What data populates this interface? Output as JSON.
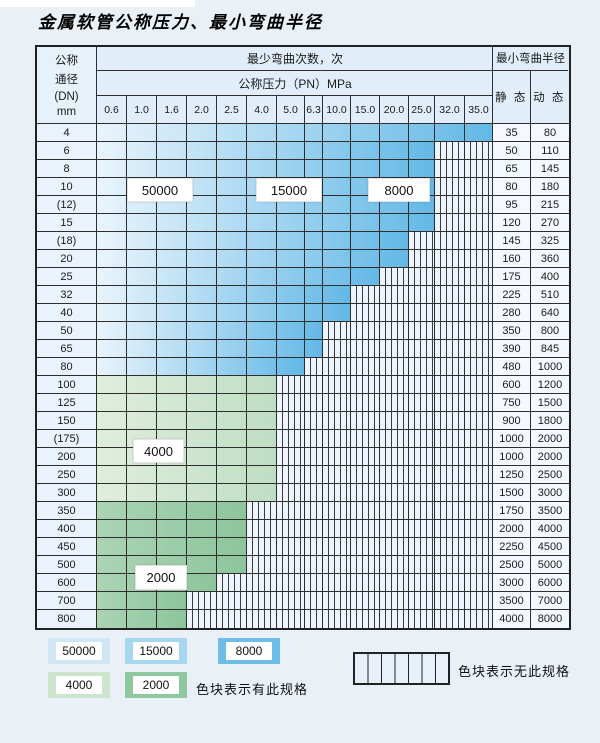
{
  "title": "金属软管公称压力、最小弯曲半径",
  "colors": {
    "grid_line": "#2e2e2e",
    "blue_zone": [
      "#e9f4fc",
      "#63b8e6"
    ],
    "green_light_zone": [
      "#e0eedd",
      "#bedec3"
    ],
    "green_dark_zone": [
      "#abd4b4",
      "#8cc59c"
    ],
    "hatch_bg": "#eef4fb"
  },
  "table": {
    "header": {
      "dn_lines": [
        "公称",
        "通径",
        "(DN)",
        "mm"
      ],
      "bend_cycles": "最少弯曲次数，次",
      "pressure": "公称压力（PN）MPa",
      "min_bend_radius": "最小弯曲半径",
      "static": "静 态",
      "dynamic": "动 态",
      "pressures": [
        "0.6",
        "1.0",
        "1.6",
        "2.0",
        "2.5",
        "4.0",
        "5.0",
        "6.3",
        "10.0",
        "15.0",
        "20.0",
        "25.0",
        "32.0",
        "35.0"
      ]
    },
    "zone_labels": [
      "50000",
      "15000",
      "8000",
      "4000",
      "2000"
    ],
    "rows": [
      {
        "dn": "4",
        "span": 14,
        "zone": "blue_zone",
        "static": "35",
        "dynamic": "80"
      },
      {
        "dn": "6",
        "span": 12,
        "zone": "blue_zone",
        "static": "50",
        "dynamic": "110"
      },
      {
        "dn": "8",
        "span": 12,
        "zone": "blue_zone",
        "static": "65",
        "dynamic": "145"
      },
      {
        "dn": "10",
        "span": 12,
        "zone": "blue_zone",
        "static": "80",
        "dynamic": "180"
      },
      {
        "dn": "(12)",
        "span": 12,
        "zone": "blue_zone",
        "static": "95",
        "dynamic": "215"
      },
      {
        "dn": "15",
        "span": 12,
        "zone": "blue_zone",
        "static": "120",
        "dynamic": "270"
      },
      {
        "dn": "(18)",
        "span": 11,
        "zone": "blue_zone",
        "static": "145",
        "dynamic": "325"
      },
      {
        "dn": "20",
        "span": 11,
        "zone": "blue_zone",
        "static": "160",
        "dynamic": "360"
      },
      {
        "dn": "25",
        "span": 10,
        "zone": "blue_zone",
        "static": "175",
        "dynamic": "400"
      },
      {
        "dn": "32",
        "span": 9,
        "zone": "blue_zone",
        "static": "225",
        "dynamic": "510"
      },
      {
        "dn": "40",
        "span": 9,
        "zone": "blue_zone",
        "static": "280",
        "dynamic": "640"
      },
      {
        "dn": "50",
        "span": 8,
        "zone": "blue_zone",
        "static": "350",
        "dynamic": "800"
      },
      {
        "dn": "65",
        "span": 8,
        "zone": "blue_zone",
        "static": "390",
        "dynamic": "845"
      },
      {
        "dn": "80",
        "span": 7,
        "zone": "blue_zone",
        "static": "480",
        "dynamic": "1000"
      },
      {
        "dn": "100",
        "span": 6,
        "zone": "green_light_zone",
        "static": "600",
        "dynamic": "1200"
      },
      {
        "dn": "125",
        "span": 6,
        "zone": "green_light_zone",
        "static": "750",
        "dynamic": "1500"
      },
      {
        "dn": "150",
        "span": 6,
        "zone": "green_light_zone",
        "static": "900",
        "dynamic": "1800"
      },
      {
        "dn": "(175)",
        "span": 6,
        "zone": "green_light_zone",
        "static": "1000",
        "dynamic": "2000"
      },
      {
        "dn": "200",
        "span": 6,
        "zone": "green_light_zone",
        "static": "1000",
        "dynamic": "2000"
      },
      {
        "dn": "250",
        "span": 6,
        "zone": "green_light_zone",
        "static": "1250",
        "dynamic": "2500"
      },
      {
        "dn": "300",
        "span": 6,
        "zone": "green_light_zone",
        "static": "1500",
        "dynamic": "3000"
      },
      {
        "dn": "350",
        "span": 5,
        "zone": "green_dark_zone",
        "static": "1750",
        "dynamic": "3500"
      },
      {
        "dn": "400",
        "span": 5,
        "zone": "green_dark_zone",
        "static": "2000",
        "dynamic": "4000"
      },
      {
        "dn": "450",
        "span": 5,
        "zone": "green_dark_zone",
        "static": "2250",
        "dynamic": "4500"
      },
      {
        "dn": "500",
        "span": 5,
        "zone": "green_dark_zone",
        "static": "2500",
        "dynamic": "5000"
      },
      {
        "dn": "600",
        "span": 4,
        "zone": "green_dark_zone",
        "static": "3000",
        "dynamic": "6000"
      },
      {
        "dn": "700",
        "span": 3,
        "zone": "green_dark_zone",
        "static": "3500",
        "dynamic": "7000"
      },
      {
        "dn": "800",
        "span": 3,
        "zone": "green_dark_zone",
        "static": "4000",
        "dynamic": "8000"
      }
    ]
  },
  "legend": {
    "has_spec_note": "色块表示有此规格",
    "no_spec_note": "色块表示无此规格",
    "swatches": [
      {
        "value": "50000",
        "color": "#cfe6f5"
      },
      {
        "value": "15000",
        "color": "#a6d7ef"
      },
      {
        "value": "8000",
        "color": "#6dbde6"
      },
      {
        "value": "4000",
        "color": "#cde4cd"
      },
      {
        "value": "2000",
        "color": "#8fc79f"
      }
    ]
  }
}
